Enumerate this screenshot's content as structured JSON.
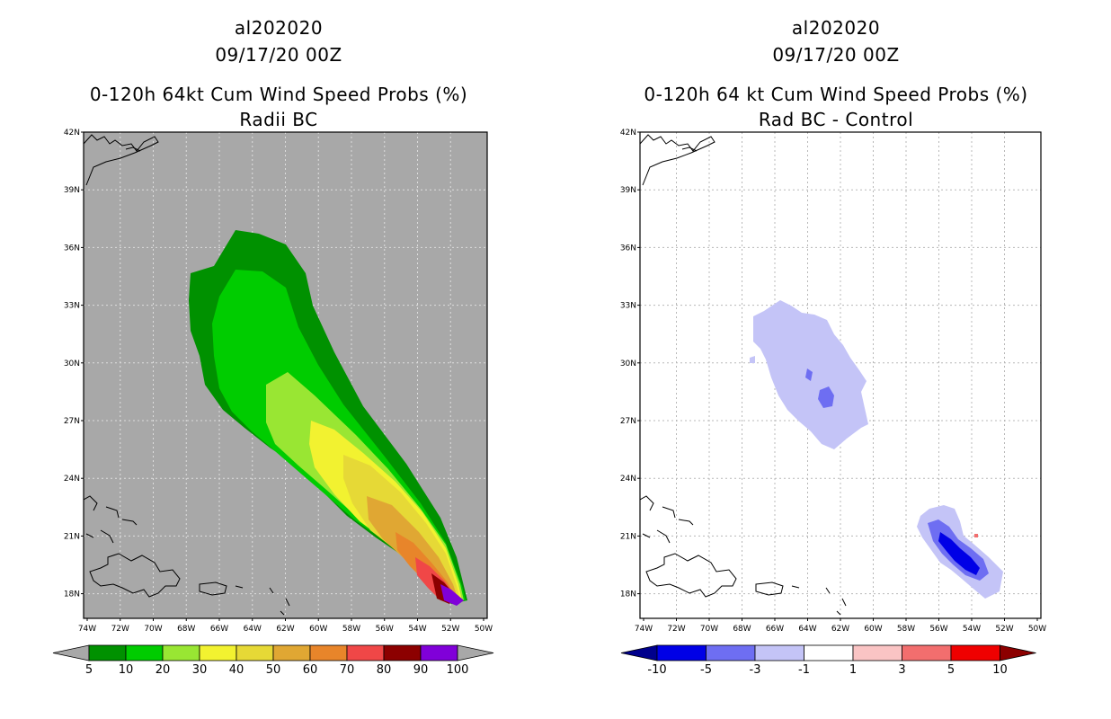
{
  "left_panel": {
    "storm_id": "al202020",
    "datetime": "09/17/20 00Z",
    "title": "0-120h 64kt Cum Wind Speed Probs (%)",
    "subtitle": "Radii BC",
    "background_color": "#a8a8a8",
    "lat_labels": [
      "42N",
      "39N",
      "36N",
      "33N",
      "30N",
      "27N",
      "24N",
      "21N",
      "18N"
    ],
    "lon_labels": [
      "74W",
      "72W",
      "70W",
      "68W",
      "66W",
      "64W",
      "62W",
      "60W",
      "58W",
      "56W",
      "54W",
      "52W",
      "50W"
    ],
    "colorbar": {
      "labels": [
        "5",
        "10",
        "20",
        "30",
        "40",
        "50",
        "60",
        "70",
        "80",
        "90",
        "100"
      ],
      "colors": [
        "#009100",
        "#00cc00",
        "#99e633",
        "#f2f230",
        "#e6d936",
        "#e0a733",
        "#e8852a",
        "#f04747",
        "#8c0000",
        "#8000d9"
      ],
      "end_low_color": "#a8a8a8",
      "end_high_color": "#a8a8a8"
    }
  },
  "right_panel": {
    "storm_id": "al202020",
    "datetime": "09/17/20 00Z",
    "title": "0-120h 64 kt Cum Wind Speed Probs (%)",
    "subtitle": "Rad BC - Control",
    "background_color": "#ffffff",
    "lat_labels": [
      "42N",
      "39N",
      "36N",
      "33N",
      "30N",
      "27N",
      "24N",
      "21N",
      "18N"
    ],
    "lon_labels": [
      "74W",
      "72W",
      "70W",
      "68W",
      "66W",
      "64W",
      "62W",
      "60W",
      "58W",
      "56W",
      "54W",
      "52W",
      "50W"
    ],
    "colorbar": {
      "labels": [
        "-10",
        "-5",
        "-3",
        "-1",
        "1",
        "3",
        "5",
        "10"
      ],
      "colors": [
        "#0000e6",
        "#6e6ef2",
        "#c4c4f7",
        "#ffffff",
        "#fac4c4",
        "#f26e6e",
        "#ef0000"
      ],
      "end_low_color": "#00008c",
      "end_high_color": "#8c0000"
    }
  }
}
